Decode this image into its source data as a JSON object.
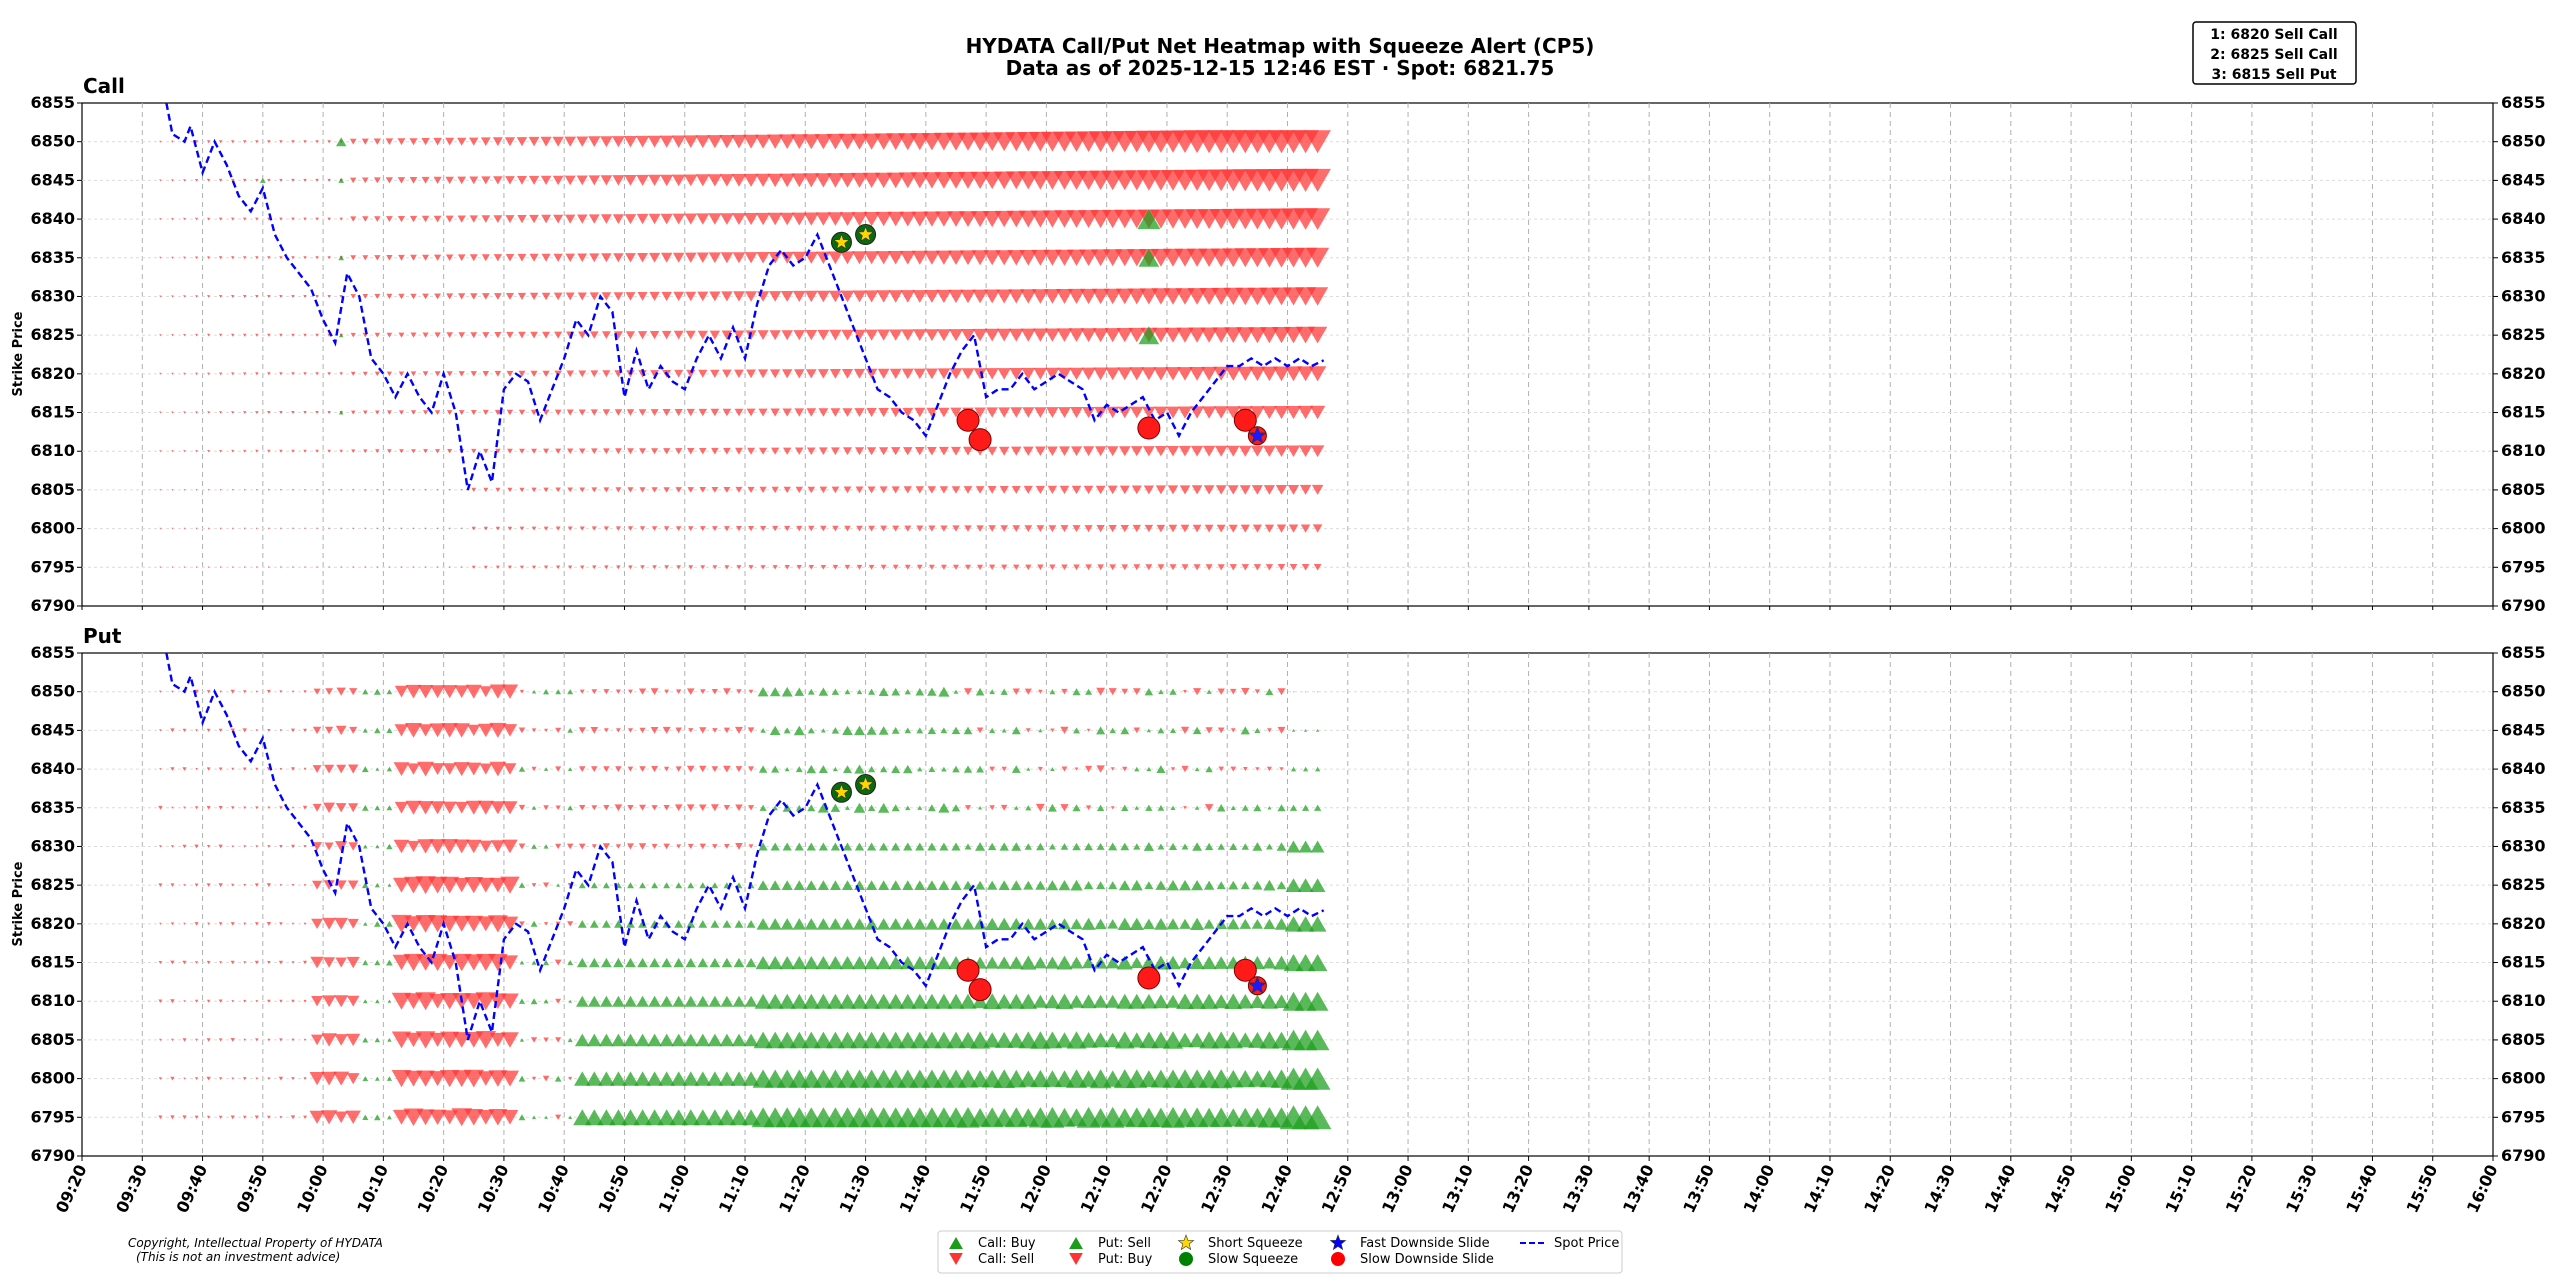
{
  "chart_data": {
    "type": "scatter",
    "title": "HYDATA Call/Put Net Heatmap with Squeeze Alert (CP5)",
    "subtitle": "Data as of 2025-12-15 12:46 EST · Spot: 6821.75",
    "ylabel": "Strike Price",
    "ylim": [
      6790,
      6855
    ],
    "yticks": [
      6790,
      6795,
      6800,
      6805,
      6810,
      6815,
      6820,
      6825,
      6830,
      6835,
      6840,
      6845,
      6850,
      6855
    ],
    "xticks": [
      "09:20",
      "09:30",
      "09:40",
      "09:50",
      "10:00",
      "10:10",
      "10:20",
      "10:30",
      "10:40",
      "10:50",
      "11:00",
      "11:10",
      "11:20",
      "11:30",
      "11:40",
      "11:50",
      "12:00",
      "12:10",
      "12:20",
      "12:30",
      "12:40",
      "12:50",
      "13:00",
      "13:10",
      "13:20",
      "13:30",
      "13:40",
      "13:50",
      "14:00",
      "14:10",
      "14:20",
      "14:30",
      "14:40",
      "14:50",
      "15:00",
      "15:10",
      "15:20",
      "15:30",
      "15:40",
      "15:50",
      "16:00"
    ],
    "panels": [
      {
        "name": "Call",
        "title": "Call"
      },
      {
        "name": "Put",
        "title": "Put"
      }
    ],
    "strikes": [
      6795,
      6800,
      6805,
      6810,
      6815,
      6820,
      6825,
      6830,
      6835,
      6840,
      6845,
      6850
    ],
    "time_start": "09:33",
    "time_end": "12:46",
    "spot_series": {
      "name": "Spot Price",
      "times": [
        "09:34",
        "09:35",
        "09:37",
        "09:38",
        "09:40",
        "09:42",
        "09:44",
        "09:46",
        "09:48",
        "09:50",
        "09:52",
        "09:54",
        "09:56",
        "09:58",
        "10:00",
        "10:02",
        "10:04",
        "10:06",
        "10:08",
        "10:10",
        "10:12",
        "10:14",
        "10:16",
        "10:18",
        "10:20",
        "10:22",
        "10:24",
        "10:26",
        "10:28",
        "10:30",
        "10:32",
        "10:34",
        "10:36",
        "10:38",
        "10:40",
        "10:42",
        "10:44",
        "10:46",
        "10:48",
        "10:50",
        "10:52",
        "10:54",
        "10:56",
        "10:58",
        "11:00",
        "11:02",
        "11:04",
        "11:06",
        "11:08",
        "11:10",
        "11:12",
        "11:14",
        "11:16",
        "11:18",
        "11:20",
        "11:22",
        "11:24",
        "11:26",
        "11:28",
        "11:30",
        "11:32",
        "11:34",
        "11:36",
        "11:38",
        "11:40",
        "11:42",
        "11:44",
        "11:46",
        "11:48",
        "11:50",
        "11:52",
        "11:54",
        "11:56",
        "11:58",
        "12:00",
        "12:02",
        "12:04",
        "12:06",
        "12:08",
        "12:10",
        "12:12",
        "12:14",
        "12:16",
        "12:18",
        "12:20",
        "12:22",
        "12:24",
        "12:26",
        "12:28",
        "12:30",
        "12:32",
        "12:34",
        "12:36",
        "12:38",
        "12:40",
        "12:42",
        "12:44",
        "12:46"
      ],
      "values": [
        6855,
        6851,
        6850,
        6852,
        6846,
        6850,
        6847,
        6843,
        6841,
        6844,
        6838,
        6835,
        6833,
        6831,
        6827,
        6824,
        6833,
        6830,
        6822,
        6820,
        6817,
        6820,
        6817,
        6815,
        6820,
        6815,
        6805,
        6810,
        6806,
        6818,
        6820,
        6819,
        6814,
        6818,
        6822,
        6827,
        6825,
        6830,
        6828,
        6817,
        6823,
        6818,
        6821,
        6819,
        6818,
        6822,
        6825,
        6822,
        6826,
        6822,
        6829,
        6834,
        6836,
        6834,
        6835,
        6838,
        6834,
        6830,
        6826,
        6822,
        6818,
        6817,
        6815,
        6814,
        6812,
        6816,
        6820,
        6823,
        6825,
        6817,
        6818,
        6818,
        6820,
        6818,
        6819,
        6820,
        6819,
        6818,
        6814,
        6816,
        6815,
        6816,
        6817,
        6814,
        6815,
        6812,
        6815,
        6817,
        6819,
        6821,
        6821,
        6822,
        6821,
        6822,
        6821,
        6822,
        6821,
        6821.75
      ]
    },
    "alerts": [
      {
        "type": "Short Squeeze",
        "time": "11:26",
        "price": 6837
      },
      {
        "type": "Short Squeeze",
        "time": "11:30",
        "price": 6838
      },
      {
        "type": "Slow Downside Slide",
        "time": "11:47",
        "price": 6814
      },
      {
        "type": "Slow Downside Slide",
        "time": "11:49",
        "price": 6811.5
      },
      {
        "type": "Slow Downside Slide",
        "time": "12:17",
        "price": 6813
      },
      {
        "type": "Slow Downside Slide",
        "time": "12:33",
        "price": 6814
      },
      {
        "type": "Fast Downside Slide",
        "time": "12:35",
        "price": 6812
      }
    ],
    "legend": [
      {
        "label": "Call: Buy",
        "marker": "triangle-up",
        "color": "#1a9e1a"
      },
      {
        "label": "Call: Sell",
        "marker": "triangle-down",
        "color": "#ff3333"
      },
      {
        "label": "Put: Sell",
        "marker": "triangle-up",
        "color": "#1a9e1a"
      },
      {
        "label": "Put: Buy",
        "marker": "triangle-down",
        "color": "#ff3333"
      },
      {
        "label": "Short Squeeze",
        "marker": "star",
        "color": "#ffd700"
      },
      {
        "label": "Slow Squeeze",
        "marker": "circle",
        "color": "#008000"
      },
      {
        "label": "Fast Downside Slide",
        "marker": "star",
        "color": "#0000ff"
      },
      {
        "label": "Slow Downside Slide",
        "marker": "circle",
        "color": "#ff0000"
      },
      {
        "label": "Spot Price",
        "marker": "dashed-line",
        "color": "#0000ff"
      }
    ],
    "annotation_box": [
      "1: 6820 Sell Call",
      "2: 6825 Sell Call",
      "3: 6815 Sell Put"
    ],
    "copyright": [
      "Copyright, Intellectual Property of HYDATA",
      "(This is not an investment advice)"
    ],
    "colors": {
      "buy_green": "#1a9e1a",
      "sell_red": "#ff3333",
      "spot": "#0000ff",
      "grid": "#b0b0b0"
    }
  }
}
